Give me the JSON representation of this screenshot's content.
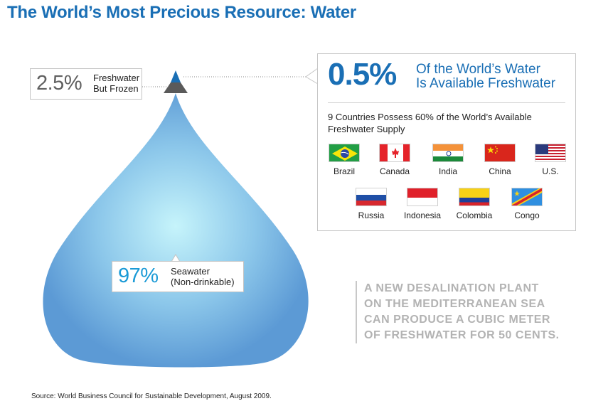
{
  "title": "The World’s Most Precious Resource: Water",
  "frozen": {
    "pct": "2.5%",
    "line1": "Freshwater",
    "line2": "But Frozen"
  },
  "seawater": {
    "pct": "97%",
    "line1": "Seawater",
    "line2": "(Non-drinkable)"
  },
  "available": {
    "pct": "0.5%",
    "line1": "Of the World’s Water",
    "line2": "Is Available Freshwater",
    "subtitle_line1": "9 Countries Possess 60% of the World’s Available",
    "subtitle_line2": "Freshwater Supply",
    "countries": [
      {
        "name": "Brazil",
        "flag": "brazil-flag-icon"
      },
      {
        "name": "Canada",
        "flag": "canada-flag-icon"
      },
      {
        "name": "India",
        "flag": "india-flag-icon"
      },
      {
        "name": "China",
        "flag": "china-flag-icon"
      },
      {
        "name": "U.S.",
        "flag": "us-flag-icon"
      },
      {
        "name": "Russia",
        "flag": "russia-flag-icon"
      },
      {
        "name": "Indonesia",
        "flag": "indonesia-flag-icon"
      },
      {
        "name": "Colombia",
        "flag": "colombia-flag-icon"
      },
      {
        "name": "Congo",
        "flag": "congo-flag-icon"
      }
    ]
  },
  "quote": [
    "A NEW DESALINATION PLANT",
    "ON THE MEDITERRANEAN SEA",
    "CAN PRODUCE A CUBIC METER",
    "OF FRESHWATER FOR 50 CENTS."
  ],
  "source": "Source: World Business Council for Sustainable Development, August 2009.",
  "colors": {
    "title_blue": "#1a6fb5",
    "seawater_blue": "#1a9ad6",
    "frozen_gray": "#606060",
    "drop_light": "#c6f4fb",
    "drop_dark": "#5c9ad5"
  }
}
